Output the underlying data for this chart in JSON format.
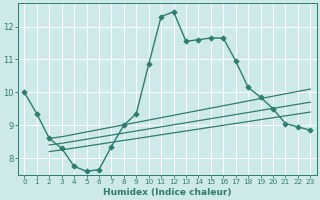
{
  "xlabel": "Humidex (Indice chaleur)",
  "bg_color": "#cee9e9",
  "line_color": "#2e7d6e",
  "grid_color": "#ffffff",
  "xlim": [
    -0.5,
    23.5
  ],
  "ylim": [
    7.5,
    12.7
  ],
  "yticks": [
    8,
    9,
    10,
    11,
    12
  ],
  "xticks": [
    0,
    1,
    2,
    3,
    4,
    5,
    6,
    7,
    8,
    9,
    10,
    11,
    12,
    13,
    14,
    15,
    16,
    17,
    18,
    19,
    20,
    21,
    22,
    23
  ],
  "series": [
    {
      "x": [
        0,
        1,
        2,
        3,
        4,
        5,
        6,
        7,
        8,
        9,
        10,
        11,
        12,
        13,
        14,
        15,
        16,
        17,
        18,
        19,
        20,
        21,
        22,
        23
      ],
      "y": [
        10.0,
        9.35,
        8.6,
        8.3,
        7.75,
        7.6,
        7.65,
        8.35,
        9.0,
        9.35,
        10.85,
        12.3,
        12.45,
        11.55,
        11.6,
        11.65,
        11.65,
        10.95,
        10.15,
        9.85,
        9.5,
        9.05,
        8.95,
        8.85
      ],
      "marker": "D",
      "markersize": 2.8,
      "linewidth": 1.0
    },
    {
      "x": [
        2,
        3,
        23
      ],
      "y": [
        8.6,
        8.65,
        10.1
      ],
      "marker": null,
      "markersize": 0,
      "linewidth": 0.9
    },
    {
      "x": [
        2,
        3,
        23
      ],
      "y": [
        8.4,
        8.45,
        9.7
      ],
      "marker": null,
      "markersize": 0,
      "linewidth": 0.9
    },
    {
      "x": [
        2,
        3,
        23
      ],
      "y": [
        8.2,
        8.25,
        9.4
      ],
      "marker": null,
      "markersize": 0,
      "linewidth": 0.9
    }
  ]
}
